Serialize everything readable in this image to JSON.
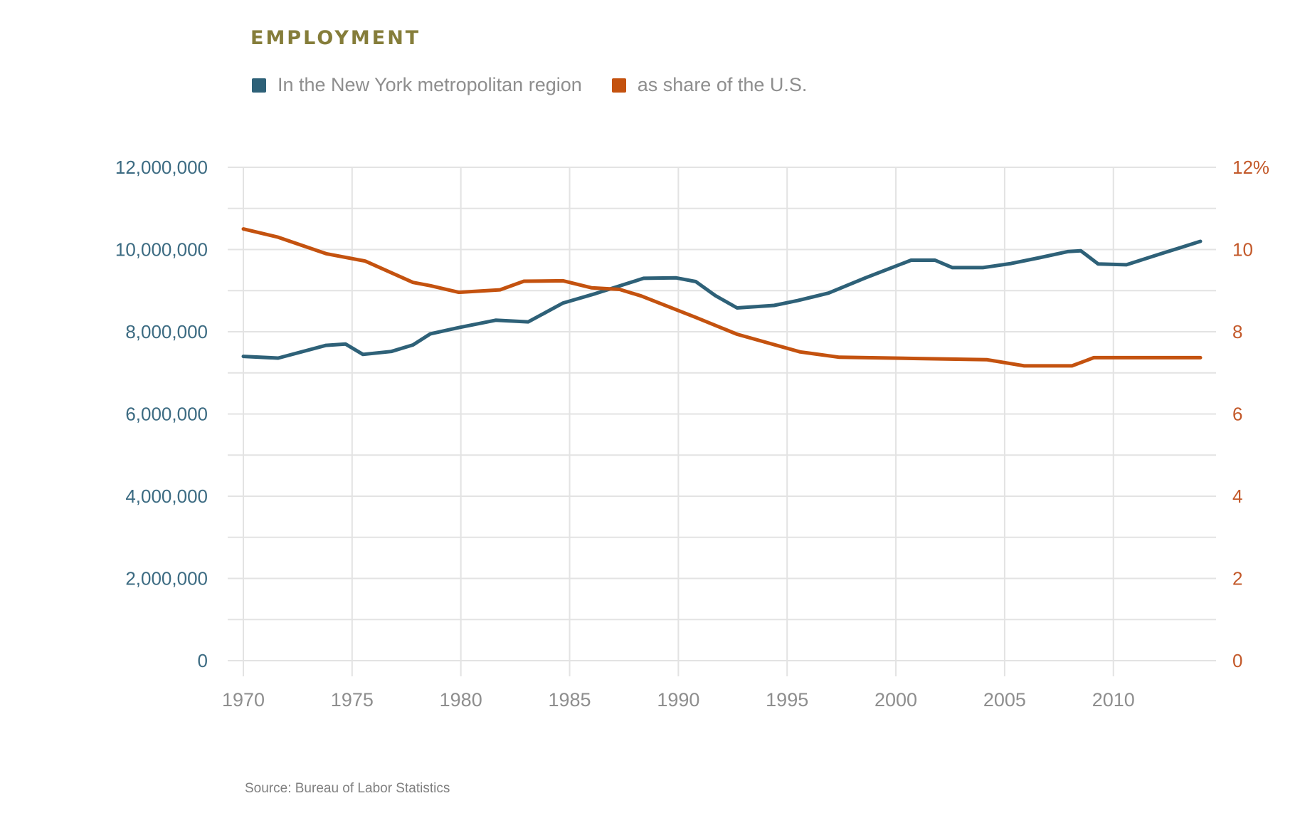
{
  "title": "EMPLOYMENT",
  "source": "Source: Bureau of Labor Statistics",
  "colors": {
    "title": "#857d3a",
    "primary": "#2e6178",
    "secondary": "#c4520f",
    "grid": "#e3e3e3",
    "left_axis_text": "#3c6b82",
    "right_axis_text": "#c3592a"
  },
  "legend": [
    {
      "label": "In the New York metropolitan region",
      "color": "#2e6178"
    },
    {
      "label": "as share of the U.S.",
      "color": "#c4520f"
    }
  ],
  "chart_data": {
    "type": "line",
    "title": "EMPLOYMENT",
    "xlim": [
      1970,
      2014
    ],
    "x_ticks": [
      "1970",
      "1975",
      "1980",
      "1985",
      "1990",
      "1995",
      "2000",
      "2005",
      "2010"
    ],
    "y_left": {
      "ylim": [
        0,
        12000000
      ],
      "ticks": [
        "0",
        "2,000,000",
        "4,000,000",
        "6,000,000",
        "8,000,000",
        "10,000,000",
        "12,000,000"
      ]
    },
    "y_right": {
      "ylim": [
        0,
        12
      ],
      "ticks": [
        "0",
        "2",
        "4",
        "6",
        "8",
        "10",
        "12%"
      ]
    },
    "grid": true,
    "legend_position": "top-left",
    "series": [
      {
        "name": "In the New York metropolitan region",
        "axis": "left",
        "x": [
          1970,
          1971.6,
          1973.8,
          1974.7,
          1975.5,
          1976.8,
          1977.8,
          1978.6,
          1979.9,
          1981.6,
          1983.1,
          1984.7,
          1986.2,
          1988.4,
          1989.9,
          1990.8,
          1991.7,
          1992.7,
          1994.4,
          1995.5,
          1996.9,
          1998.6,
          2000.7,
          2001.8,
          2002.6,
          2004.0,
          2005.3,
          2006.6,
          2007.9,
          2008.5,
          2009.3,
          2010.6,
          2012.2,
          2014
        ],
        "values": [
          7400000,
          7360000,
          7670000,
          7700000,
          7450000,
          7520000,
          7680000,
          7950000,
          8100000,
          8280000,
          8240000,
          8700000,
          8930000,
          9300000,
          9310000,
          9220000,
          8880000,
          8580000,
          8640000,
          8760000,
          8940000,
          9310000,
          9740000,
          9740000,
          9560000,
          9560000,
          9660000,
          9800000,
          9950000,
          9970000,
          9650000,
          9630000,
          9900000,
          10200000
        ]
      },
      {
        "name": "as share of the U.S.",
        "axis": "right",
        "x": [
          1970,
          1971.6,
          1973.8,
          1975.6,
          1977.8,
          1978.6,
          1979.9,
          1981.8,
          1982.9,
          1984.7,
          1986.0,
          1987.3,
          1988.3,
          1990.8,
          1992.7,
          1995.6,
          1997.4,
          2000.8,
          2004.2,
          2005.9,
          2008.1,
          2009.1,
          2011.6,
          2014
        ],
        "values": [
          10.5,
          10.3,
          9.9,
          9.72,
          9.2,
          9.12,
          8.96,
          9.02,
          9.23,
          9.24,
          9.07,
          9.03,
          8.87,
          8.35,
          7.94,
          7.51,
          7.38,
          7.35,
          7.32,
          7.17,
          7.17,
          7.37,
          7.37,
          7.37
        ]
      }
    ]
  }
}
